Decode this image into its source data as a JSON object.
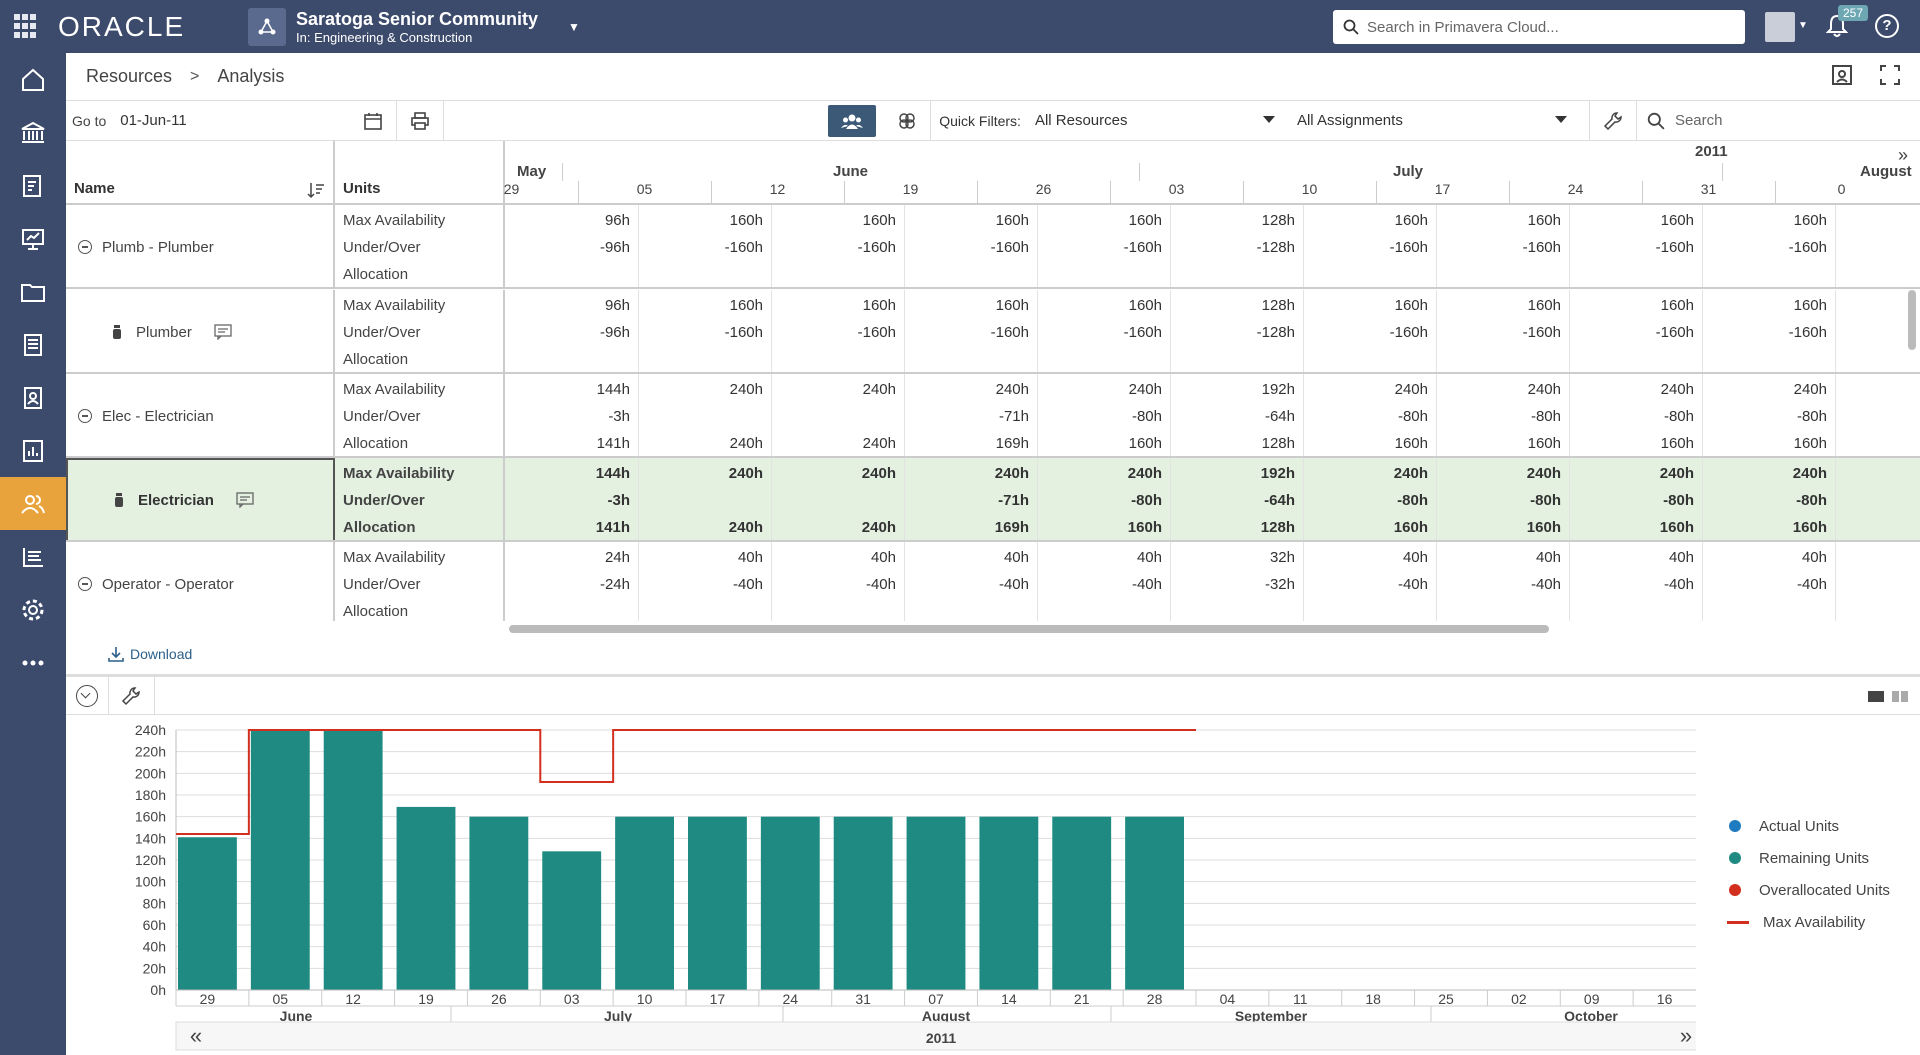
{
  "topbar": {
    "logo": "ORACLE",
    "project_name": "Saratoga Senior Community",
    "project_sub": "In: Engineering & Construction",
    "search_placeholder": "Search in Primavera Cloud...",
    "notification_count": "257",
    "help": "?"
  },
  "breadcrumb": {
    "item1": "Resources",
    "sep": ">",
    "item2": "Analysis"
  },
  "toolbar": {
    "goto_label": "Go to",
    "goto_value": "01-Jun-11",
    "quick_filters_label": "Quick Filters:",
    "quick_filter_value": "All Resources",
    "assignments_value": "All Assignments",
    "search_placeholder": "Search"
  },
  "grid": {
    "headers": {
      "name": "Name",
      "units": "Units"
    },
    "year": "2011",
    "months": [
      "May",
      "June",
      "July",
      "August"
    ],
    "weeks": [
      "29",
      "05",
      "12",
      "19",
      "26",
      "03",
      "10",
      "17",
      "24",
      "31",
      "0"
    ],
    "unit_labels": [
      "Max Availability",
      "Under/Over",
      "Allocation"
    ],
    "groups": [
      {
        "name": "Plumb - Plumber",
        "type": "group",
        "rows": [
          [
            "96h",
            "160h",
            "160h",
            "160h",
            "160h",
            "128h",
            "160h",
            "160h",
            "160h",
            "160h"
          ],
          [
            "-96h",
            "-160h",
            "-160h",
            "-160h",
            "-160h",
            "-128h",
            "-160h",
            "-160h",
            "-160h",
            "-160h"
          ],
          [
            "",
            "",
            "",
            "",
            "",
            "",
            "",
            "",
            "",
            ""
          ]
        ]
      },
      {
        "name": "Plumber",
        "type": "resource",
        "rows": [
          [
            "96h",
            "160h",
            "160h",
            "160h",
            "160h",
            "128h",
            "160h",
            "160h",
            "160h",
            "160h"
          ],
          [
            "-96h",
            "-160h",
            "-160h",
            "-160h",
            "-160h",
            "-128h",
            "-160h",
            "-160h",
            "-160h",
            "-160h"
          ],
          [
            "",
            "",
            "",
            "",
            "",
            "",
            "",
            "",
            "",
            ""
          ]
        ]
      },
      {
        "name": "Elec - Electrician",
        "type": "group",
        "rows": [
          [
            "144h",
            "240h",
            "240h",
            "240h",
            "240h",
            "192h",
            "240h",
            "240h",
            "240h",
            "240h"
          ],
          [
            "-3h",
            "",
            "",
            "-71h",
            "-80h",
            "-64h",
            "-80h",
            "-80h",
            "-80h",
            "-80h"
          ],
          [
            "141h",
            "240h",
            "240h",
            "169h",
            "160h",
            "128h",
            "160h",
            "160h",
            "160h",
            "160h"
          ]
        ]
      },
      {
        "name": "Electrician",
        "type": "resource-selected",
        "rows": [
          [
            "144h",
            "240h",
            "240h",
            "240h",
            "240h",
            "192h",
            "240h",
            "240h",
            "240h",
            "240h"
          ],
          [
            "-3h",
            "",
            "",
            "-71h",
            "-80h",
            "-64h",
            "-80h",
            "-80h",
            "-80h",
            "-80h"
          ],
          [
            "141h",
            "240h",
            "240h",
            "169h",
            "160h",
            "128h",
            "160h",
            "160h",
            "160h",
            "160h"
          ]
        ]
      },
      {
        "name": "Operator - Operator",
        "type": "group",
        "rows": [
          [
            "24h",
            "40h",
            "40h",
            "40h",
            "40h",
            "32h",
            "40h",
            "40h",
            "40h",
            "40h"
          ],
          [
            "-24h",
            "-40h",
            "-40h",
            "-40h",
            "-40h",
            "-32h",
            "-40h",
            "-40h",
            "-40h",
            "-40h"
          ],
          [
            "",
            "",
            "",
            "",
            "",
            "",
            "",
            "",
            "",
            ""
          ]
        ]
      }
    ]
  },
  "download_label": "Download",
  "colors": {
    "bar": "#1e8a82",
    "maxline": "#d32f1f",
    "actual": "#1f7bbf",
    "over": "#d32f1f",
    "nav": "#3c4a6c",
    "active": "#e8a33d",
    "selected_row": "#e4f1e1"
  },
  "chart_data": {
    "type": "bar",
    "y_ticks": [
      "240h",
      "220h",
      "200h",
      "180h",
      "160h",
      "140h",
      "120h",
      "100h",
      "80h",
      "60h",
      "40h",
      "20h",
      "0h"
    ],
    "ylim": [
      0,
      240
    ],
    "categories": [
      "29",
      "05",
      "12",
      "19",
      "26",
      "03",
      "10",
      "17",
      "24",
      "31",
      "07",
      "14",
      "21",
      "28",
      "04",
      "11",
      "18",
      "25",
      "02",
      "09",
      "16"
    ],
    "months": [
      "June",
      "July",
      "August",
      "September",
      "October"
    ],
    "year": "2011",
    "series": [
      {
        "name": "Remaining Units",
        "values": [
          141,
          240,
          240,
          169,
          160,
          128,
          160,
          160,
          160,
          160,
          160,
          160,
          160,
          160,
          null,
          null,
          null,
          null,
          null,
          null,
          null
        ]
      },
      {
        "name": "Max Availability",
        "values": [
          144,
          240,
          240,
          240,
          240,
          192,
          240,
          240,
          240,
          240,
          240,
          240,
          240,
          240,
          null,
          null,
          null,
          null,
          null,
          null,
          null
        ]
      }
    ],
    "legend": [
      "Actual Units",
      "Remaining Units",
      "Overallocated Units",
      "Max Availability"
    ],
    "legend_position": "right"
  }
}
